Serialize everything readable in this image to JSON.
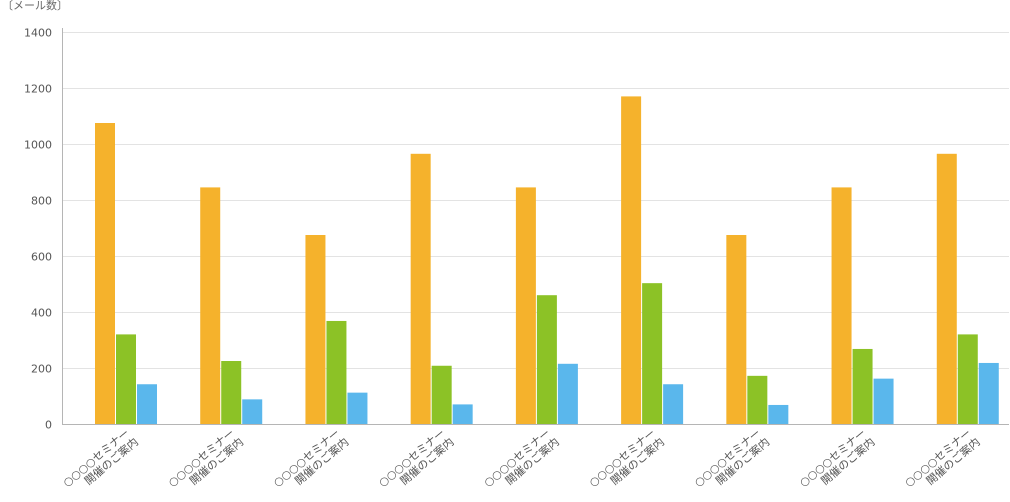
{
  "chart_data": {
    "type": "bar",
    "ylabel": "〔メール数〕",
    "ylim": [
      0,
      1400
    ],
    "yticks": [
      0,
      200,
      400,
      600,
      800,
      1000,
      1200,
      1400
    ],
    "grid": true,
    "categories": [
      [
        "○○○○セミナー",
        "開催のご案内"
      ],
      [
        "○○○○セミナー",
        "開催のご案内"
      ],
      [
        "○○○○セミナー",
        "開催のご案内"
      ],
      [
        "○○○○セミナー",
        "開催のご案内"
      ],
      [
        "○○○○セミナー",
        "開催のご案内"
      ],
      [
        "○○○○セミナー",
        "開催のご案内"
      ],
      [
        "○○○○セミナー",
        "開催のご案内"
      ],
      [
        "○○○○セミナー",
        "開催のご案内"
      ],
      [
        "○○○○セミナー",
        "開催のご案内"
      ]
    ],
    "series": [
      {
        "color": "#f5b22c",
        "values": [
          1075,
          845,
          675,
          965,
          845,
          1170,
          675,
          845,
          965
        ]
      },
      {
        "color": "#8cc226",
        "values": [
          320,
          225,
          368,
          208,
          460,
          503,
          172,
          268,
          320
        ]
      },
      {
        "color": "#5ab7ec",
        "values": [
          142,
          88,
          112,
          70,
          215,
          142,
          68,
          162,
          218
        ]
      }
    ]
  }
}
